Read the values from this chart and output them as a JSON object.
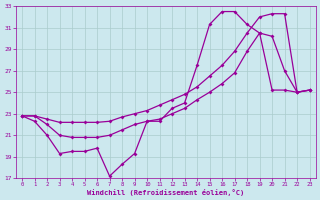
{
  "xlabel": "Windchill (Refroidissement éolien,°C)",
  "background_color": "#cce8ee",
  "line_color": "#990099",
  "grid_color": "#aacccc",
  "xlim": [
    -0.5,
    23.5
  ],
  "ylim": [
    17,
    33
  ],
  "yticks": [
    17,
    19,
    21,
    23,
    25,
    27,
    29,
    31,
    33
  ],
  "xticks": [
    0,
    1,
    2,
    3,
    4,
    5,
    6,
    7,
    8,
    9,
    10,
    11,
    12,
    13,
    14,
    15,
    16,
    17,
    18,
    19,
    20,
    21,
    22,
    23
  ],
  "line1_x": [
    0,
    1,
    2,
    3,
    4,
    5,
    6,
    7,
    8,
    9,
    10,
    11,
    12,
    13,
    14,
    15,
    16,
    17,
    18,
    19,
    20,
    21,
    22,
    23
  ],
  "line1_y": [
    22.8,
    22.3,
    21.0,
    19.3,
    19.5,
    19.5,
    19.8,
    17.2,
    18.3,
    19.3,
    22.3,
    22.3,
    23.5,
    24.0,
    27.5,
    31.3,
    32.5,
    32.5,
    31.3,
    30.5,
    25.2,
    25.2,
    25.0,
    25.2
  ],
  "line2_x": [
    0,
    1,
    2,
    3,
    4,
    5,
    6,
    7,
    8,
    9,
    10,
    11,
    12,
    13,
    14,
    15,
    16,
    17,
    18,
    19,
    20,
    21,
    22,
    23
  ],
  "line2_y": [
    22.8,
    22.8,
    22.0,
    21.0,
    20.8,
    20.8,
    20.8,
    21.0,
    21.5,
    22.0,
    22.3,
    22.5,
    23.0,
    23.5,
    24.3,
    25.0,
    25.8,
    26.8,
    28.8,
    30.5,
    30.2,
    27.0,
    25.0,
    25.2
  ],
  "line3_x": [
    0,
    1,
    2,
    3,
    4,
    5,
    6,
    7,
    8,
    9,
    10,
    11,
    12,
    13,
    14,
    15,
    16,
    17,
    18,
    19,
    20,
    21,
    22,
    23
  ],
  "line3_y": [
    22.8,
    22.8,
    22.5,
    22.2,
    22.2,
    22.2,
    22.2,
    22.3,
    22.7,
    23.0,
    23.3,
    23.8,
    24.3,
    24.8,
    25.5,
    26.5,
    27.5,
    28.8,
    30.5,
    32.0,
    32.3,
    32.3,
    25.0,
    25.2
  ]
}
